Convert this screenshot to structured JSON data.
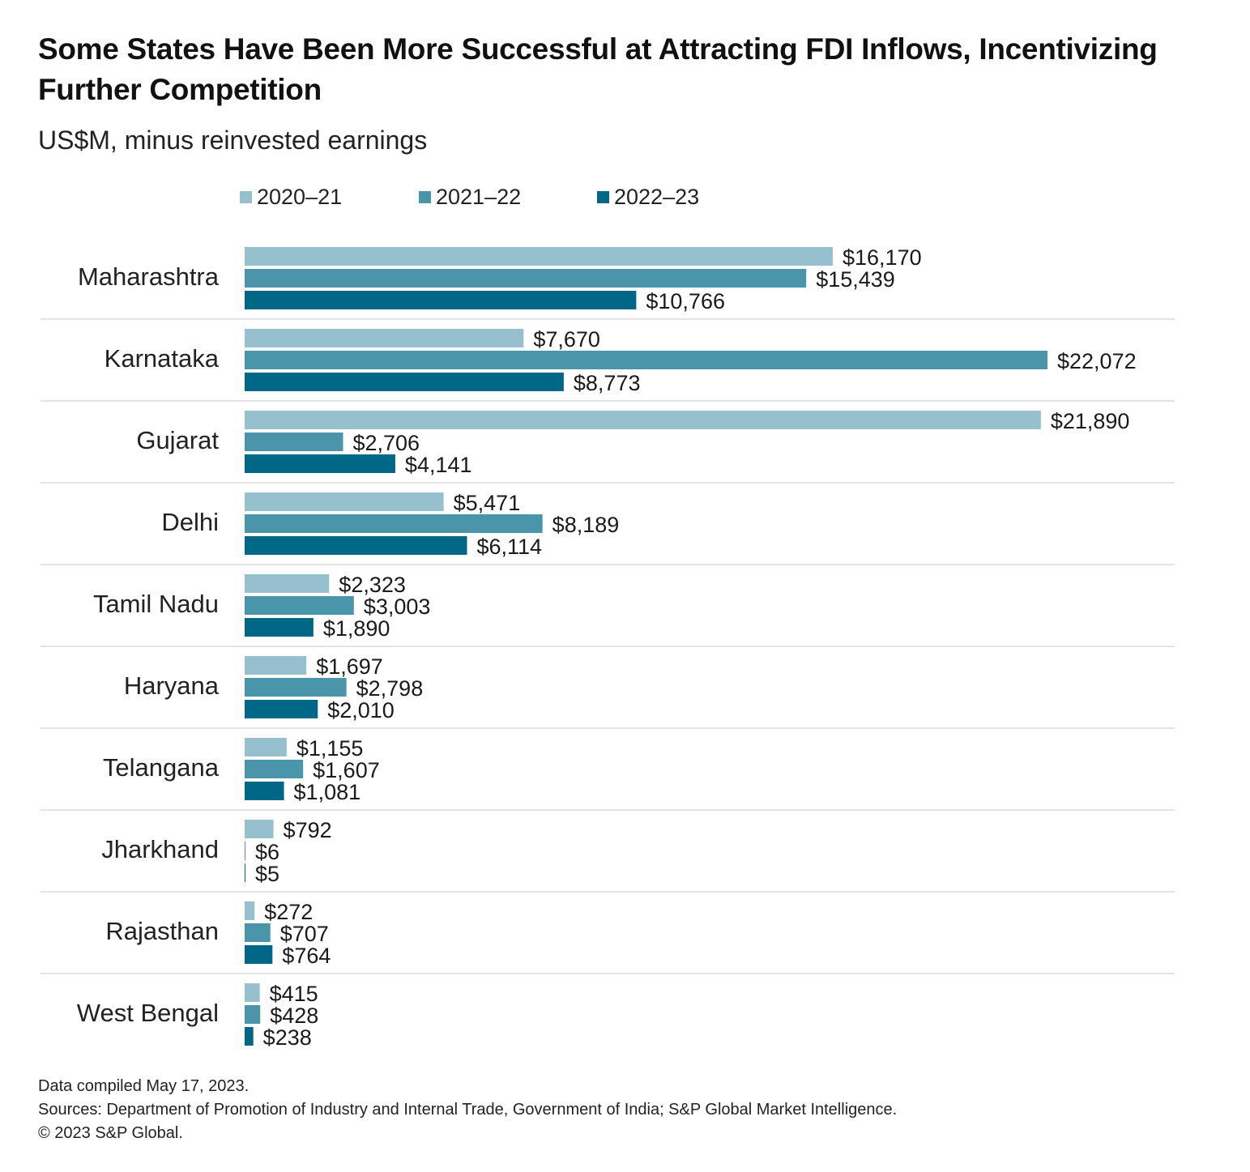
{
  "chart_data": {
    "type": "bar",
    "orientation": "horizontal",
    "title": "Some States Have Been More Successful at Attracting FDI Inflows, Incentivizing Further Competition",
    "subtitle": "US$M, minus reinvested earnings",
    "xlabel": "",
    "ylabel": "",
    "xlim": [
      0,
      22072
    ],
    "grid": false,
    "legend_position": "top",
    "value_prefix": "$",
    "categories": [
      "Maharashtra",
      "Karnataka",
      "Gujarat",
      "Delhi",
      "Tamil Nadu",
      "Haryana",
      "Telangana",
      "Jharkhand",
      "Rajasthan",
      "West Bengal"
    ],
    "series": [
      {
        "name": "2020–21",
        "color": "#96c0cd",
        "values": [
          16170,
          7670,
          21890,
          5471,
          2323,
          1697,
          1155,
          792,
          272,
          415
        ]
      },
      {
        "name": "2021–22",
        "color": "#4a95aa",
        "values": [
          15439,
          22072,
          2706,
          8189,
          3003,
          2798,
          1607,
          6,
          707,
          428
        ]
      },
      {
        "name": "2022–23",
        "color": "#006886",
        "values": [
          10766,
          8773,
          4141,
          6114,
          1890,
          2010,
          1081,
          5,
          764,
          238
        ]
      }
    ]
  },
  "header": {
    "title": "Some States Have Been More Successful at Attracting FDI Inflows, Incentivizing Further Competition",
    "subtitle": "US$M, minus reinvested earnings"
  },
  "legend": [
    {
      "label": "2020–21",
      "color": "#96c0cd"
    },
    {
      "label": "2021–22",
      "color": "#4a95aa"
    },
    {
      "label": "2022–23",
      "color": "#006886"
    }
  ],
  "footer": {
    "compiled": "Data compiled May 17, 2023.",
    "sources": "Sources: Department of Promotion of Industry and Internal Trade, Government of India; S&P Global Market Intelligence.",
    "copyright": "© 2023 S&P Global."
  }
}
